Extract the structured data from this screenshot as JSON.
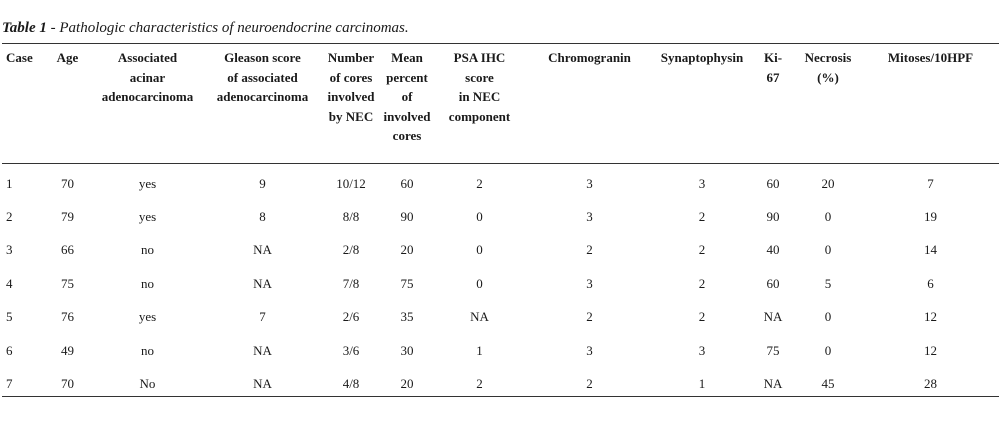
{
  "caption": {
    "label": "Table 1",
    "text": " - Pathologic characteristics of neuroendocrine carcinomas."
  },
  "table": {
    "headers": [
      [
        "Case"
      ],
      [
        "Age"
      ],
      [
        "Associated",
        "acinar",
        "adenocarcinoma"
      ],
      [
        "Gleason score",
        "of associated",
        "adenocarcinoma"
      ],
      [
        "Number",
        "of cores",
        "involved",
        "by NEC"
      ],
      [
        "Mean",
        "percent",
        "of",
        "involved",
        "cores"
      ],
      [
        "PSA IHC",
        "score",
        "in NEC",
        "component"
      ],
      [
        "Chromogranin"
      ],
      [
        "Synaptophysin"
      ],
      [
        "Ki-",
        "67"
      ],
      [
        "Necrosis",
        "(%)"
      ],
      [
        "Mitoses/10HPF"
      ]
    ],
    "rows": [
      [
        "1",
        "70",
        "yes",
        "9",
        "10/12",
        "60",
        "2",
        "3",
        "3",
        "60",
        "20",
        "7"
      ],
      [
        "2",
        "79",
        "yes",
        "8",
        "8/8",
        "90",
        "0",
        "3",
        "2",
        "90",
        "0",
        "19"
      ],
      [
        "3",
        "66",
        "no",
        "NA",
        "2/8",
        "20",
        "0",
        "2",
        "2",
        "40",
        "0",
        "14"
      ],
      [
        "4",
        "75",
        "no",
        "NA",
        "7/8",
        "75",
        "0",
        "3",
        "2",
        "60",
        "5",
        "6"
      ],
      [
        "5",
        "76",
        "yes",
        "7",
        "2/6",
        "35",
        "NA",
        "2",
        "2",
        "NA",
        "0",
        "12"
      ],
      [
        "6",
        "49",
        "no",
        "NA",
        "3/6",
        "30",
        "1",
        "3",
        "3",
        "75",
        "0",
        "12"
      ],
      [
        "7",
        "70",
        "No",
        "NA",
        "4/8",
        "20",
        "2",
        "2",
        "1",
        "NA",
        "45",
        "28"
      ]
    ]
  }
}
